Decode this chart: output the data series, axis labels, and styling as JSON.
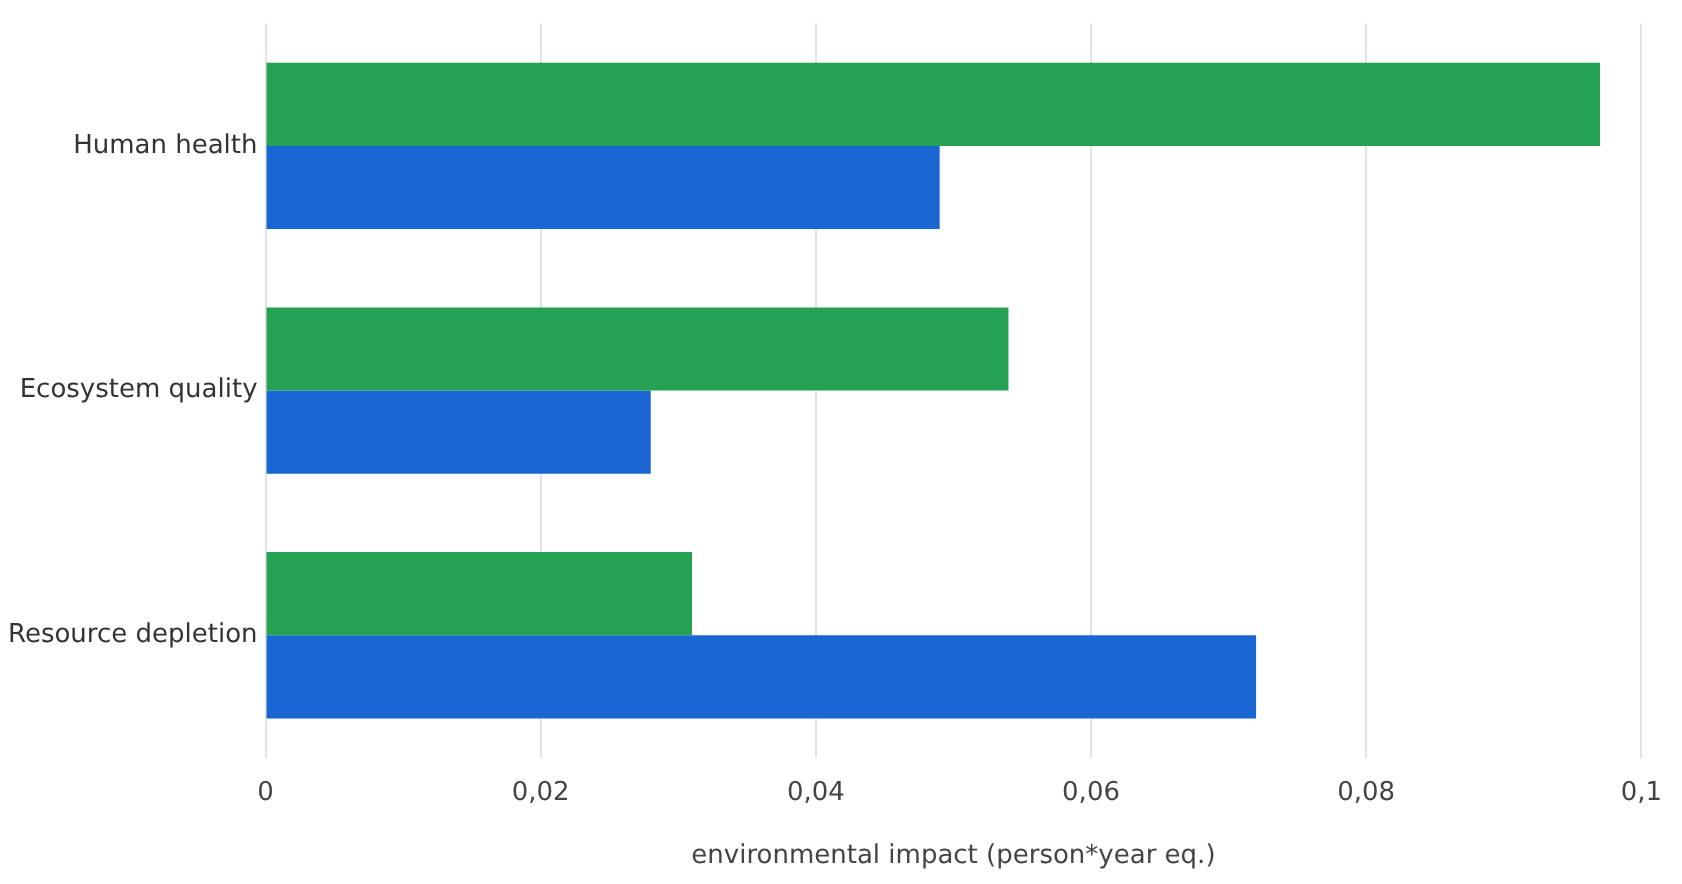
{
  "chart_data": {
    "type": "bar",
    "orientation": "horizontal",
    "xlabel": "environmental impact (person*year eq.)",
    "categories": [
      "Human health",
      "Ecosystem quality",
      "Resource depletion"
    ],
    "series": [
      {
        "color": "#24a153",
        "values": [
          0.097,
          0.054,
          0.031
        ]
      },
      {
        "color": "#1a66d2",
        "values": [
          0.049,
          0.028,
          0.072
        ]
      }
    ],
    "xlim": [
      0,
      0.1
    ],
    "xticks": [
      0,
      {
        "value": 0.02,
        "label": "0,02"
      },
      {
        "value": 0.04,
        "label": "0,04"
      },
      {
        "value": 0.06,
        "label": "0,06"
      },
      {
        "value": 0.08,
        "label": "0,08"
      },
      {
        "value": 0.1,
        "label": "0,1"
      }
    ],
    "grid": "x"
  }
}
